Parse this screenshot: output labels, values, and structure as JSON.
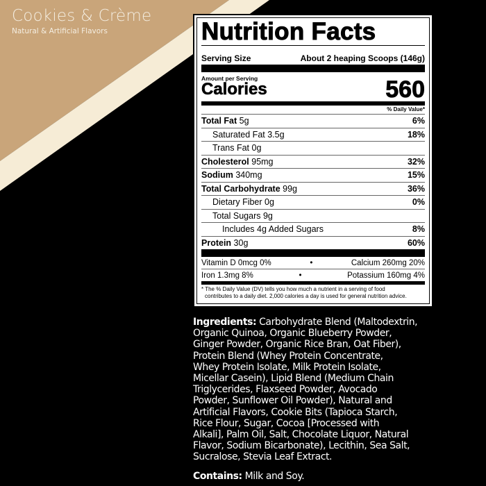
{
  "colors": {
    "tan": "#c9a57a",
    "cream": "#f6ecd6",
    "black": "#000000"
  },
  "product": {
    "flavor": "Cookies & Crème",
    "subtitle": "Natural & Artificial Flavors"
  },
  "label": {
    "title": "Nutrition Facts",
    "serving_size_label": "Serving Size",
    "serving_size_value": "About 2 heaping Scoops (146g)",
    "amount_per_serving": "Amount per Serving",
    "calories_label": "Calories",
    "calories_value": "560",
    "dv_header": "% Daily Value*",
    "nutrients": [
      {
        "name": "Total Fat",
        "amount": " 5g",
        "dv": "6%",
        "bold": true,
        "indent": 0
      },
      {
        "name": "Saturated Fat 3.5g",
        "amount": "",
        "dv": "18%",
        "bold": false,
        "indent": 1
      },
      {
        "name": "Trans Fat 0g",
        "amount": "",
        "dv": "",
        "bold": false,
        "indent": 1
      },
      {
        "name": "Cholesterol",
        "amount": " 95mg",
        "dv": "32%",
        "bold": true,
        "indent": 0
      },
      {
        "name": "Sodium",
        "amount": " 340mg",
        "dv": "15%",
        "bold": true,
        "indent": 0
      },
      {
        "name": "Total Carbohydrate",
        "amount": " 99g",
        "dv": "36%",
        "bold": true,
        "indent": 0
      },
      {
        "name": "Dietary Fiber 0g",
        "amount": "",
        "dv": "0%",
        "bold": false,
        "indent": 1
      },
      {
        "name": "Total Sugars 9g",
        "amount": "",
        "dv": "",
        "bold": false,
        "indent": 1
      },
      {
        "name": "Includes 4g Added Sugars",
        "amount": "",
        "dv": "8%",
        "bold": false,
        "indent": 2
      },
      {
        "name": "Protein",
        "amount": " 30g",
        "dv": "60%",
        "bold": true,
        "indent": 0
      }
    ],
    "vitamins": [
      {
        "left": "Vitamin D 0mcg 0%",
        "right": "Calcium 260mg 20%"
      },
      {
        "left": "Iron 1.3mg 8%",
        "right": "Potassium 160mg 4%"
      }
    ],
    "bullet": "•",
    "footnote_line1": "* The % Daily Value (DV) tells you how much a nutrient in a serving of food",
    "footnote_line2": "contributes to a daily diet. 2,000 calories a day is used for general nutrition advice."
  },
  "ingredients": {
    "label": "Ingredients:",
    "lines": [
      " Carbohydrate Blend (Maltodextrin,",
      "Organic Quinoa, Organic Blueberry Powder,",
      "Ginger Powder, Organic Rice Bran, Oat Fiber),",
      "Protein Blend (Whey Protein Concentrate,",
      "Whey Protein Isolate, Milk Protein Isolate,",
      "Micellar Casein), Lipid Blend (Medium Chain",
      "Triglycerides, Flaxseed Powder, Avocado",
      "Powder, Sunflower Oil Powder), Natural and",
      "Artificial Flavors, Cookie Bits (Tapioca Starch,",
      "Rice Flour, Sugar, Cocoa [Processed with",
      "Alkali], Palm Oil, Salt, Chocolate Liquor, Natural",
      "Flavor, Sodium Bicarbonate), Lecithin, Sea Salt,",
      "Sucralose, Stevia Leaf Extract."
    ]
  },
  "contains": {
    "label": "Contains:",
    "value": " Milk and Soy."
  }
}
